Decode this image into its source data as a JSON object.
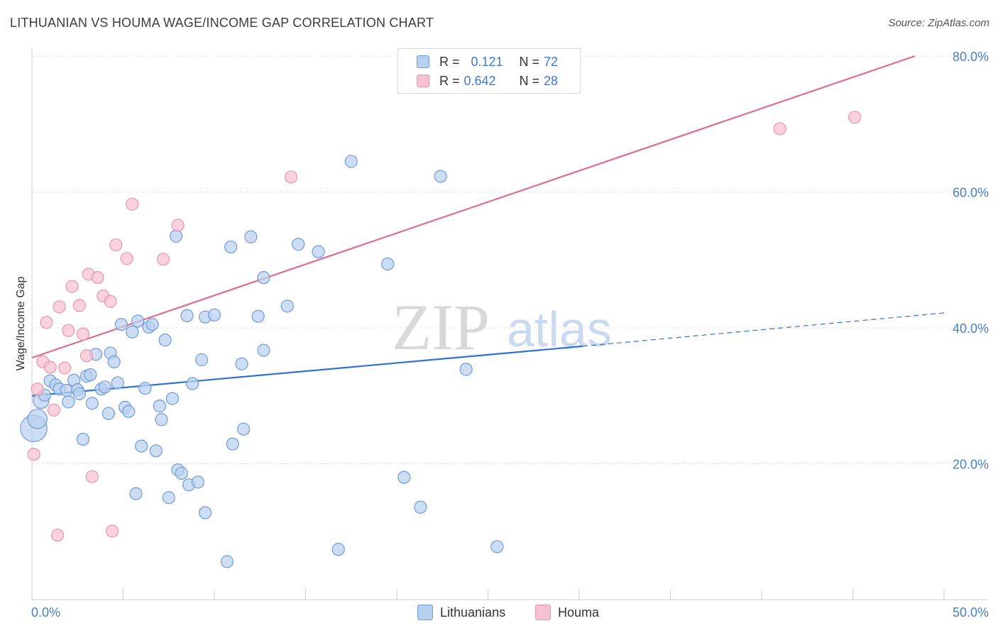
{
  "header": {
    "title": "LITHUANIAN VS HOUMA WAGE/INCOME GAP CORRELATION CHART",
    "source": "Source: ZipAtlas.com"
  },
  "watermark": {
    "zip": "ZIP",
    "atlas": "atlas"
  },
  "legend": {
    "rows": [
      {
        "r_label": "R =",
        "r_value": "0.121",
        "n_label": "N =",
        "n_value": "72"
      },
      {
        "r_label": "R =",
        "r_value": "0.642",
        "n_label": "N =",
        "n_value": "28"
      }
    ],
    "bottom": [
      "Lithuanians",
      "Houma"
    ]
  },
  "colors": {
    "blue_fill": "#b8d0f0",
    "blue_stroke": "#6f9bd8",
    "blue_line": "#2f72d0",
    "pink_fill": "#f6c1d1",
    "pink_stroke": "#e896b0",
    "pink_line": "#e06a94",
    "tick_text": "#4a7fc8",
    "grid": "#dcdcdc"
  },
  "chart_data": {
    "type": "scatter",
    "title": "LITHUANIAN VS HOUMA WAGE/INCOME GAP CORRELATION CHART",
    "xlabel": "",
    "ylabel": "Wage/Income Gap",
    "xlim": [
      0,
      50
    ],
    "ylim": [
      0,
      80
    ],
    "x_tick_labels": [
      "0.0%",
      "50.0%"
    ],
    "y_ticks": [
      20,
      40,
      60,
      80
    ],
    "y_tick_labels": [
      "20.0%",
      "40.0%",
      "60.0%",
      "80.0%"
    ],
    "grid": "horizontal dashed",
    "legend_position": "top-center",
    "series": [
      {
        "name": "Lithuanians",
        "color": "#b8d0f0",
        "stats": {
          "R": 0.121,
          "N": 72
        },
        "points": [
          [
            0.1,
            25.2,
            2.2
          ],
          [
            0.3,
            26.6,
            1.6
          ],
          [
            0.5,
            29.3,
            1.3
          ],
          [
            0.7,
            30.1,
            1.0
          ],
          [
            1.0,
            32.2,
            1.0
          ],
          [
            1.3,
            31.6,
            1.0
          ],
          [
            1.5,
            31.0,
            1.0
          ],
          [
            1.9,
            30.8,
            1.0
          ],
          [
            2.0,
            29.1,
            1.0
          ],
          [
            2.3,
            32.3,
            1.0
          ],
          [
            2.5,
            30.9,
            1.0
          ],
          [
            2.6,
            30.3,
            1.0
          ],
          [
            2.8,
            23.6,
            1.0
          ],
          [
            3.0,
            32.9,
            1.0
          ],
          [
            3.2,
            33.1,
            1.0
          ],
          [
            3.3,
            28.9,
            1.0
          ],
          [
            3.5,
            36.1,
            1.0
          ],
          [
            3.8,
            31.0,
            1.0
          ],
          [
            4.0,
            31.3,
            1.0
          ],
          [
            4.2,
            27.4,
            1.0
          ],
          [
            4.3,
            36.3,
            1.0
          ],
          [
            4.5,
            35.0,
            1.0
          ],
          [
            4.7,
            31.9,
            1.0
          ],
          [
            4.9,
            40.5,
            1.0
          ],
          [
            5.1,
            28.3,
            1.0
          ],
          [
            5.3,
            27.7,
            1.0
          ],
          [
            5.5,
            39.4,
            1.0
          ],
          [
            5.7,
            15.6,
            1.0
          ],
          [
            5.8,
            41.0,
            1.0
          ],
          [
            6.0,
            22.6,
            1.0
          ],
          [
            6.2,
            31.1,
            1.0
          ],
          [
            6.4,
            40.1,
            1.0
          ],
          [
            6.6,
            40.5,
            1.0
          ],
          [
            6.8,
            21.9,
            1.0
          ],
          [
            7.0,
            28.5,
            1.0
          ],
          [
            7.1,
            26.5,
            1.0
          ],
          [
            7.3,
            38.2,
            1.0
          ],
          [
            7.5,
            15.0,
            1.0
          ],
          [
            7.7,
            29.6,
            1.0
          ],
          [
            7.9,
            53.5,
            1.0
          ],
          [
            8.0,
            19.1,
            1.0
          ],
          [
            8.2,
            18.6,
            1.0
          ],
          [
            8.5,
            41.8,
            1.0
          ],
          [
            8.6,
            16.9,
            1.0
          ],
          [
            8.8,
            31.8,
            1.0
          ],
          [
            9.1,
            17.3,
            1.0
          ],
          [
            9.3,
            35.3,
            1.0
          ],
          [
            9.5,
            12.8,
            1.0
          ],
          [
            9.5,
            41.6,
            1.0
          ],
          [
            10.0,
            41.9,
            1.0
          ],
          [
            10.7,
            5.6,
            1.0
          ],
          [
            10.9,
            51.9,
            1.0
          ],
          [
            11.0,
            22.9,
            1.0
          ],
          [
            11.5,
            34.7,
            1.0
          ],
          [
            11.6,
            25.1,
            1.0
          ],
          [
            12.0,
            53.4,
            1.0
          ],
          [
            12.4,
            41.7,
            1.0
          ],
          [
            12.7,
            36.7,
            1.0
          ],
          [
            12.7,
            47.4,
            1.0
          ],
          [
            14.0,
            43.2,
            1.0
          ],
          [
            14.6,
            52.3,
            1.0
          ],
          [
            15.7,
            51.2,
            1.0
          ],
          [
            16.8,
            7.4,
            1.0
          ],
          [
            17.5,
            64.5,
            1.0
          ],
          [
            19.5,
            49.4,
            1.0
          ],
          [
            20.4,
            18.0,
            1.0
          ],
          [
            21.3,
            13.6,
            1.0
          ],
          [
            22.4,
            62.3,
            1.0
          ],
          [
            23.8,
            33.9,
            1.0
          ],
          [
            25.5,
            7.8,
            1.0
          ]
        ]
      },
      {
        "name": "Houma",
        "color": "#f6c1d1",
        "stats": {
          "R": 0.642,
          "N": 28
        },
        "points": [
          [
            0.1,
            21.4,
            1.0
          ],
          [
            0.3,
            31.0,
            1.0
          ],
          [
            0.6,
            35.0,
            1.0
          ],
          [
            0.8,
            40.8,
            1.0
          ],
          [
            1.0,
            34.2,
            1.0
          ],
          [
            1.2,
            27.9,
            1.0
          ],
          [
            1.4,
            9.5,
            1.0
          ],
          [
            1.5,
            43.1,
            1.0
          ],
          [
            1.8,
            34.1,
            1.0
          ],
          [
            2.0,
            39.6,
            1.0
          ],
          [
            2.2,
            46.1,
            1.0
          ],
          [
            2.6,
            43.3,
            1.0
          ],
          [
            2.8,
            39.1,
            1.0
          ],
          [
            3.0,
            35.9,
            1.0
          ],
          [
            3.1,
            47.9,
            1.0
          ],
          [
            3.3,
            18.1,
            1.0
          ],
          [
            3.6,
            47.4,
            1.0
          ],
          [
            3.9,
            44.7,
            1.0
          ],
          [
            4.3,
            43.9,
            1.0
          ],
          [
            4.4,
            10.1,
            1.0
          ],
          [
            4.6,
            52.2,
            1.0
          ],
          [
            5.2,
            50.2,
            1.0
          ],
          [
            5.5,
            58.2,
            1.0
          ],
          [
            7.2,
            50.1,
            1.0
          ],
          [
            8.0,
            55.1,
            1.0
          ],
          [
            14.2,
            62.2,
            1.0
          ],
          [
            41.0,
            69.3,
            1.0
          ],
          [
            45.1,
            71.0,
            1.0
          ]
        ]
      }
    ],
    "trend_lines": [
      {
        "series": "Lithuanians",
        "x": [
          0,
          30.2
        ],
        "y": [
          30.0,
          37.3
        ],
        "extended_dashed_to": [
          50,
          42.2
        ]
      },
      {
        "series": "Houma",
        "x": [
          0,
          48.4
        ],
        "y": [
          35.6,
          80.0
        ]
      }
    ]
  }
}
